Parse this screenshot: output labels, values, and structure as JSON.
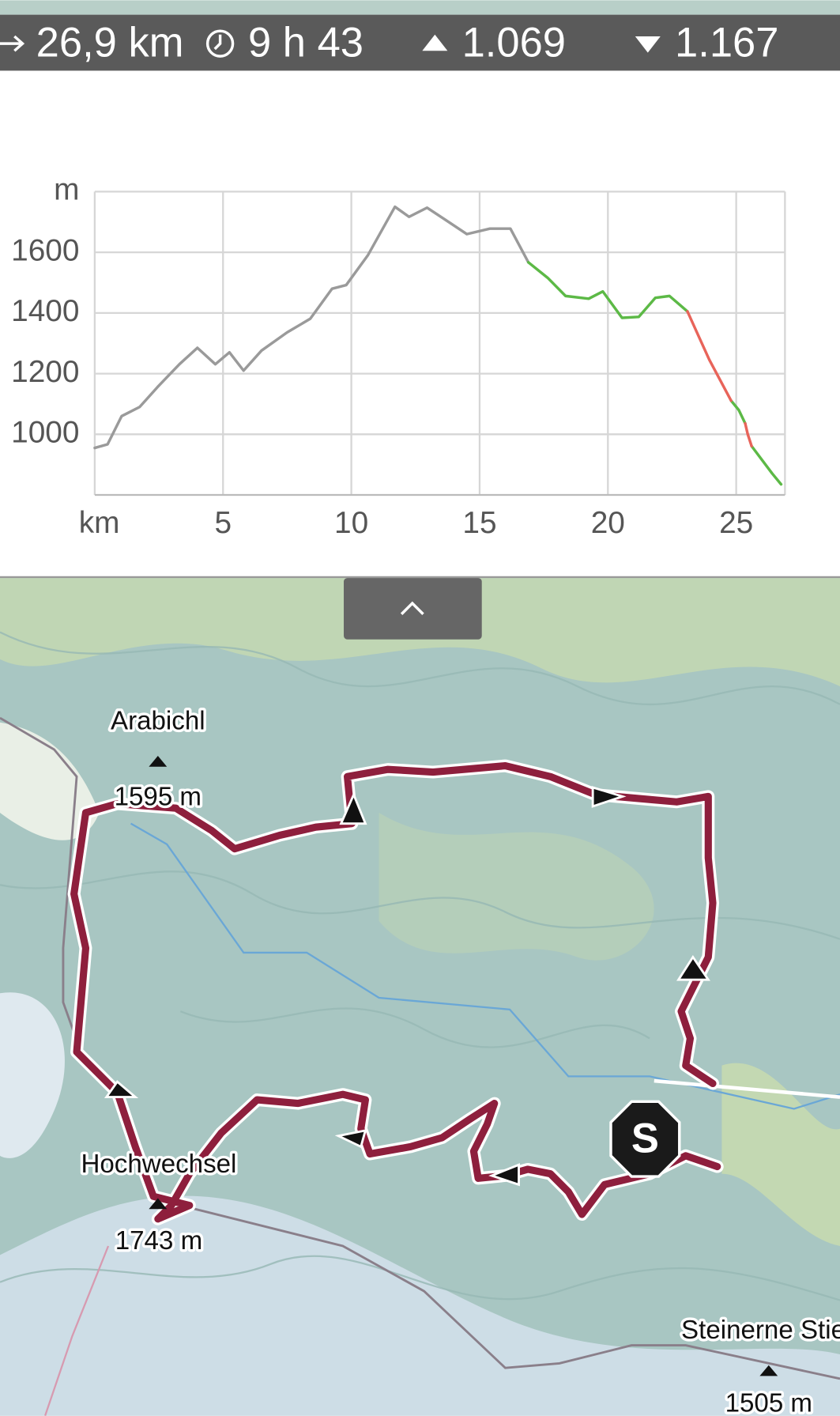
{
  "stats": {
    "distance": "26,9 km",
    "duration": "9 h 43",
    "ascent": "1.069",
    "descent": "1.167"
  },
  "chart_data": {
    "type": "line",
    "x": [
      0,
      0.5,
      1.05,
      1.75,
      2.45,
      3.3,
      4.0,
      4.7,
      5.25,
      5.8,
      6.5,
      7.5,
      8.4,
      9.25,
      9.8,
      10.65,
      11.7,
      12.25,
      12.95,
      13.65,
      14.5,
      15.4,
      16.2,
      16.9,
      17.65,
      18.35,
      19.25,
      19.8,
      20.55,
      21.2,
      21.85,
      22.4,
      23.1,
      23.95,
      24.8,
      25.1,
      25.35,
      25.45,
      25.6,
      26.4,
      26.75
    ],
    "series": [
      {
        "color": "#9a9a9a",
        "values": [
          955,
          967,
          1060,
          1090,
          1156,
          1231,
          1285,
          1231,
          1270,
          1210,
          1276,
          1336,
          1381,
          1480,
          1492,
          1591,
          1750,
          1717,
          1747,
          1708,
          1660,
          1678,
          1678,
          1567,
          null,
          null,
          null,
          null,
          null,
          null,
          null,
          null,
          null,
          null,
          null,
          null,
          null,
          null,
          null,
          null,
          null
        ]
      },
      {
        "color": "#5cb946",
        "values": [
          null,
          null,
          null,
          null,
          null,
          null,
          null,
          null,
          null,
          null,
          null,
          null,
          null,
          null,
          null,
          null,
          null,
          null,
          null,
          null,
          null,
          null,
          null,
          1567,
          1516,
          1456,
          1447,
          1471,
          1384,
          1387,
          1450,
          1456,
          1405,
          null,
          1111,
          1080,
          1036,
          null,
          961,
          871,
          835
        ]
      },
      {
        "color": "#e8645a",
        "values": [
          null,
          null,
          null,
          null,
          null,
          null,
          null,
          null,
          null,
          null,
          null,
          null,
          null,
          null,
          null,
          null,
          null,
          null,
          null,
          null,
          null,
          null,
          null,
          null,
          null,
          null,
          null,
          null,
          null,
          null,
          null,
          null,
          1405,
          1246,
          1111,
          null,
          1036,
          1000,
          961,
          null,
          null
        ]
      }
    ],
    "xlim": [
      0,
      26.9
    ],
    "xticks": [
      {
        "value": 0,
        "label": "km"
      },
      5,
      10,
      15,
      20,
      25
    ],
    "ylim": [
      800,
      1800
    ],
    "yticks": [
      {
        "value": 1800,
        "label": "m"
      },
      1600,
      1400,
      1200,
      1000
    ],
    "grid": true
  },
  "map": {
    "peaks": [
      {
        "name": "Arabichl",
        "elevation": "1595 m"
      },
      {
        "name": "Hochwechsel",
        "elevation": "1743 m"
      },
      {
        "name": "Steinerne Stieg",
        "elevation": "1505 m"
      }
    ],
    "start": "S"
  }
}
